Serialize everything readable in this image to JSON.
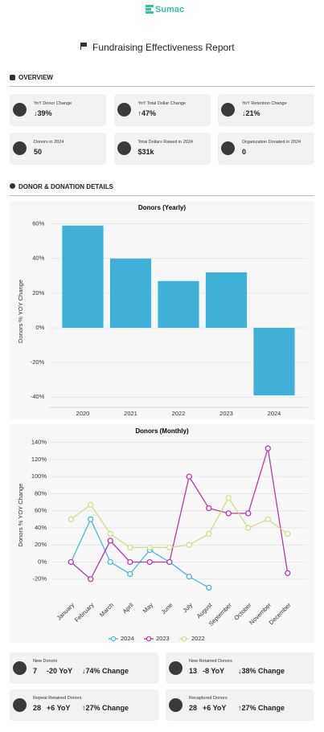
{
  "header": {
    "logo": "Sumac",
    "title": "Fundraising Effectiveness Report"
  },
  "overview": {
    "heading": "OVERVIEW",
    "cards": [
      {
        "label": "YoY Donor Change",
        "value": "↓39%"
      },
      {
        "label": "YoY Total Dollar Change",
        "value": "↑47%"
      },
      {
        "label": "YoY Retention Change",
        "value": "↓21%"
      },
      {
        "label": "Donors in 2024",
        "value": "50"
      },
      {
        "label": "Total Dollars Raised in 2024",
        "value": "$31k"
      },
      {
        "label": "Organization Donated in 2024",
        "value": "0"
      }
    ]
  },
  "details": {
    "heading": "DONOR & DONATION DETAILS"
  },
  "chart_data": [
    {
      "type": "bar",
      "title": "Donors (Yearly)",
      "ylabel": "Donors % YOY Change",
      "categories": [
        "2020",
        "2021",
        "2022",
        "2023",
        "2024"
      ],
      "values": [
        59,
        40,
        27,
        32,
        -39
      ],
      "color": "#3fb1d8",
      "ylim": [
        -45,
        64
      ],
      "yticks": [
        {
          "value": -40,
          "label": "-40%"
        },
        {
          "value": -20,
          "label": "-20%"
        },
        {
          "value": 0,
          "label": "0%"
        },
        {
          "value": 20,
          "label": "20%"
        },
        {
          "value": 40,
          "label": "40%"
        },
        {
          "value": 60,
          "label": "60%"
        }
      ],
      "grid": true
    },
    {
      "type": "line",
      "title": "Donors (Monthly)",
      "ylabel": "Donors % YOY Change",
      "categories": [
        "January",
        "February",
        "March",
        "April",
        "May",
        "June",
        "July",
        "August",
        "September",
        "October",
        "November",
        "December"
      ],
      "series": [
        {
          "name": "2024",
          "color": "#4bb8d6",
          "values": [
            0,
            50,
            0,
            -14,
            14,
            0,
            -17,
            -30,
            null,
            null,
            null,
            null
          ]
        },
        {
          "name": "2023",
          "color": "#b03ca8",
          "values": [
            0,
            -20,
            25,
            0,
            0,
            0,
            100,
            63,
            57,
            57,
            133,
            -13
          ]
        },
        {
          "name": "2022",
          "color": "#cbe089",
          "values": [
            50,
            67,
            33,
            17,
            17,
            17,
            20,
            33,
            75,
            40,
            50,
            33
          ]
        }
      ],
      "ylim": [
        -40,
        150
      ],
      "yticks": [
        {
          "value": -20,
          "label": "-20%"
        },
        {
          "value": 0,
          "label": "0%"
        },
        {
          "value": 20,
          "label": "20%"
        },
        {
          "value": 40,
          "label": "40%"
        },
        {
          "value": 60,
          "label": "60%"
        },
        {
          "value": 80,
          "label": "80%"
        },
        {
          "value": 100,
          "label": "100%"
        },
        {
          "value": 120,
          "label": "120%"
        },
        {
          "value": 140,
          "label": "140%"
        }
      ],
      "grid": true,
      "legend": "bottom"
    }
  ],
  "summary": {
    "cards": [
      {
        "label": "New Donors",
        "count": 7,
        "yoy": "-20 YoY",
        "change": "↓74% Change"
      },
      {
        "label": "New Retained Donors",
        "count": 13,
        "yoy": "-8 YoY",
        "change": "↓38% Change"
      },
      {
        "label": "Repeat Retained Donors",
        "count": 28,
        "yoy": "+6 YoY",
        "change": "↑27% Change"
      },
      {
        "label": "Recaptured Donors",
        "count": 28,
        "yoy": "+6 YoY",
        "change": "↑27% Change"
      }
    ]
  }
}
